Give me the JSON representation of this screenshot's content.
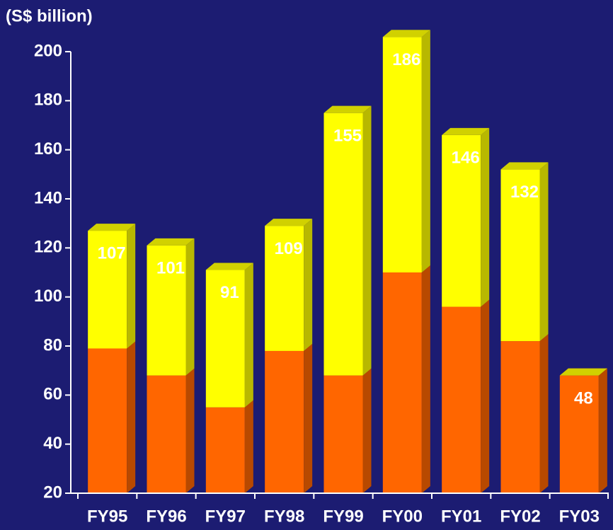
{
  "chart_data": {
    "type": "stacked-bar-3d",
    "y_label": "(S$ billion)",
    "categories": [
      "FY95",
      "FY96",
      "FY97",
      "FY98",
      "FY99",
      "FY00",
      "FY01",
      "FY02",
      "FY03"
    ],
    "series": [
      {
        "color": "#ff6600",
        "values": [
          59,
          48,
          35,
          58,
          48,
          90,
          76,
          62,
          48
        ]
      },
      {
        "color": "#ffff00",
        "values": [
          48,
          53,
          56,
          51,
          107,
          96,
          70,
          70,
          0
        ]
      }
    ],
    "totals": [
      107,
      101,
      91,
      109,
      155,
      186,
      146,
      132,
      48
    ],
    "ylim": [
      20,
      200
    ],
    "yticks": [
      20,
      40,
      60,
      80,
      100,
      120,
      140,
      160,
      180,
      200
    ]
  }
}
